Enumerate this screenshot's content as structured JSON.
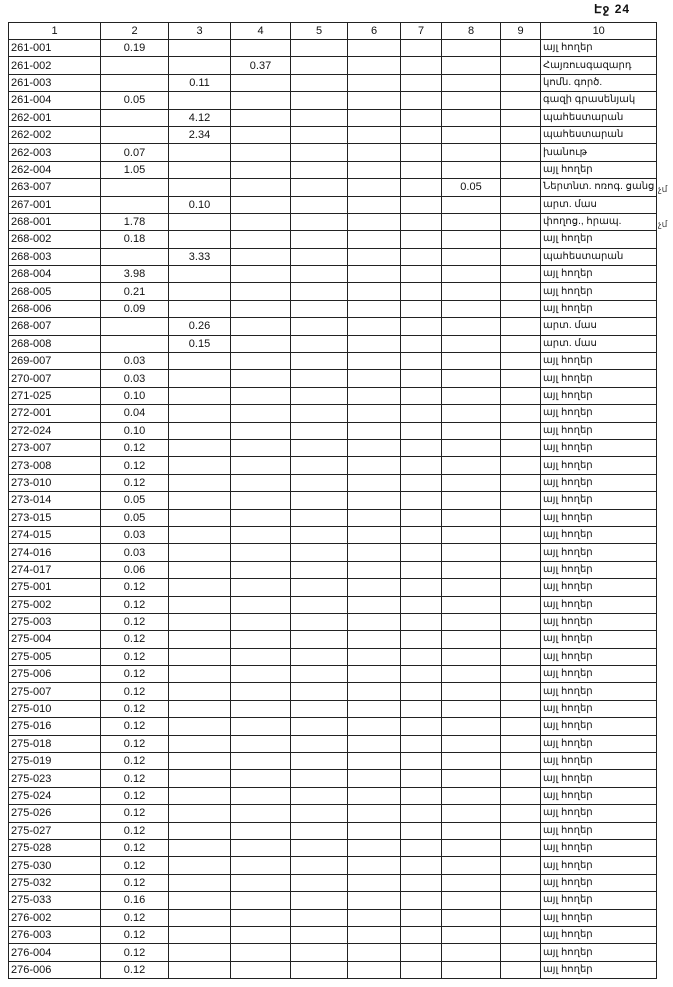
{
  "page_label": "Էջ 24",
  "headers": [
    "1",
    "2",
    "3",
    "4",
    "5",
    "6",
    "7",
    "8",
    "9",
    "10"
  ],
  "rows": [
    [
      "261-001",
      "0.19",
      "",
      "",
      "",
      "",
      "",
      "",
      "",
      "այլ հողեր"
    ],
    [
      "261-002",
      "",
      "",
      "0.37",
      "",
      "",
      "",
      "",
      "",
      "Հայռուսգազարդ"
    ],
    [
      "261-003",
      "",
      "0.11",
      "",
      "",
      "",
      "",
      "",
      "",
      "կոմն. գործ."
    ],
    [
      "261-004",
      "0.05",
      "",
      "",
      "",
      "",
      "",
      "",
      "",
      "գազի գրասենյակ"
    ],
    [
      "262-001",
      "",
      "4.12",
      "",
      "",
      "",
      "",
      "",
      "",
      "պահեստարան"
    ],
    [
      "262-002",
      "",
      "2.34",
      "",
      "",
      "",
      "",
      "",
      "",
      "պահեստարան"
    ],
    [
      "262-003",
      "0.07",
      "",
      "",
      "",
      "",
      "",
      "",
      "",
      "խանութ"
    ],
    [
      "262-004",
      "1.05",
      "",
      "",
      "",
      "",
      "",
      "",
      "",
      "այլ հողեր"
    ],
    [
      "263-007",
      "",
      "",
      "",
      "",
      "",
      "",
      "0.05",
      "",
      "Ներտնտ. ոռոգ. ցանց"
    ],
    [
      "267-001",
      "",
      "0.10",
      "",
      "",
      "",
      "",
      "",
      "",
      "արտ. մաս"
    ],
    [
      "268-001",
      "1.78",
      "",
      "",
      "",
      "",
      "",
      "",
      "",
      "փողոց., հրապ."
    ],
    [
      "268-002",
      "0.18",
      "",
      "",
      "",
      "",
      "",
      "",
      "",
      "այլ հողեր"
    ],
    [
      "268-003",
      "",
      "3.33",
      "",
      "",
      "",
      "",
      "",
      "",
      "պահեստարան"
    ],
    [
      "268-004",
      "3.98",
      "",
      "",
      "",
      "",
      "",
      "",
      "",
      "այլ հողեր"
    ],
    [
      "268-005",
      "0.21",
      "",
      "",
      "",
      "",
      "",
      "",
      "",
      "այլ հողեր"
    ],
    [
      "268-006",
      "0.09",
      "",
      "",
      "",
      "",
      "",
      "",
      "",
      "այլ հողեր"
    ],
    [
      "268-007",
      "",
      "0.26",
      "",
      "",
      "",
      "",
      "",
      "",
      "արտ. մաս"
    ],
    [
      "268-008",
      "",
      "0.15",
      "",
      "",
      "",
      "",
      "",
      "",
      "արտ. մաս"
    ],
    [
      "269-007",
      "0.03",
      "",
      "",
      "",
      "",
      "",
      "",
      "",
      "այլ հողեր"
    ],
    [
      "270-007",
      "0.03",
      "",
      "",
      "",
      "",
      "",
      "",
      "",
      "այլ հողեր"
    ],
    [
      "271-025",
      "0.10",
      "",
      "",
      "",
      "",
      "",
      "",
      "",
      "այլ հողեր"
    ],
    [
      "272-001",
      "0.04",
      "",
      "",
      "",
      "",
      "",
      "",
      "",
      "այլ հողեր"
    ],
    [
      "272-024",
      "0.10",
      "",
      "",
      "",
      "",
      "",
      "",
      "",
      "այլ հողեր"
    ],
    [
      "273-007",
      "0.12",
      "",
      "",
      "",
      "",
      "",
      "",
      "",
      "այլ հողեր"
    ],
    [
      "273-008",
      "0.12",
      "",
      "",
      "",
      "",
      "",
      "",
      "",
      "այլ հողեր"
    ],
    [
      "273-010",
      "0.12",
      "",
      "",
      "",
      "",
      "",
      "",
      "",
      "այլ հողեր"
    ],
    [
      "273-014",
      "0.05",
      "",
      "",
      "",
      "",
      "",
      "",
      "",
      "այլ հողեր"
    ],
    [
      "273-015",
      "0.05",
      "",
      "",
      "",
      "",
      "",
      "",
      "",
      "այլ հողեր"
    ],
    [
      "274-015",
      "0.03",
      "",
      "",
      "",
      "",
      "",
      "",
      "",
      "այլ հողեր"
    ],
    [
      "274-016",
      "0.03",
      "",
      "",
      "",
      "",
      "",
      "",
      "",
      "այլ հողեր"
    ],
    [
      "274-017",
      "0.06",
      "",
      "",
      "",
      "",
      "",
      "",
      "",
      "այլ հողեր"
    ],
    [
      "275-001",
      "0.12",
      "",
      "",
      "",
      "",
      "",
      "",
      "",
      "այլ հողեր"
    ],
    [
      "275-002",
      "0.12",
      "",
      "",
      "",
      "",
      "",
      "",
      "",
      "այլ հողեր"
    ],
    [
      "275-003",
      "0.12",
      "",
      "",
      "",
      "",
      "",
      "",
      "",
      "այլ հողեր"
    ],
    [
      "275-004",
      "0.12",
      "",
      "",
      "",
      "",
      "",
      "",
      "",
      "այլ հողեր"
    ],
    [
      "275-005",
      "0.12",
      "",
      "",
      "",
      "",
      "",
      "",
      "",
      "այլ հողեր"
    ],
    [
      "275-006",
      "0.12",
      "",
      "",
      "",
      "",
      "",
      "",
      "",
      "այլ հողեր"
    ],
    [
      "275-007",
      "0.12",
      "",
      "",
      "",
      "",
      "",
      "",
      "",
      "այլ հողեր"
    ],
    [
      "275-010",
      "0.12",
      "",
      "",
      "",
      "",
      "",
      "",
      "",
      "այլ հողեր"
    ],
    [
      "275-016",
      "0.12",
      "",
      "",
      "",
      "",
      "",
      "",
      "",
      "այլ հողեր"
    ],
    [
      "275-018",
      "0.12",
      "",
      "",
      "",
      "",
      "",
      "",
      "",
      "այլ հողեր"
    ],
    [
      "275-019",
      "0.12",
      "",
      "",
      "",
      "",
      "",
      "",
      "",
      "այլ հողեր"
    ],
    [
      "275-023",
      "0.12",
      "",
      "",
      "",
      "",
      "",
      "",
      "",
      "այլ հողեր"
    ],
    [
      "275-024",
      "0.12",
      "",
      "",
      "",
      "",
      "",
      "",
      "",
      "այլ հողեր"
    ],
    [
      "275-026",
      "0.12",
      "",
      "",
      "",
      "",
      "",
      "",
      "",
      "այլ հողեր"
    ],
    [
      "275-027",
      "0.12",
      "",
      "",
      "",
      "",
      "",
      "",
      "",
      "այլ հողեր"
    ],
    [
      "275-028",
      "0.12",
      "",
      "",
      "",
      "",
      "",
      "",
      "",
      "այլ հողեր"
    ],
    [
      "275-030",
      "0.12",
      "",
      "",
      "",
      "",
      "",
      "",
      "",
      "այլ հողեր"
    ],
    [
      "275-032",
      "0.12",
      "",
      "",
      "",
      "",
      "",
      "",
      "",
      "այլ հողեր"
    ],
    [
      "275-033",
      "0.16",
      "",
      "",
      "",
      "",
      "",
      "",
      "",
      "այլ հողեր"
    ],
    [
      "276-002",
      "0.12",
      "",
      "",
      "",
      "",
      "",
      "",
      "",
      "այլ հողեր"
    ],
    [
      "276-003",
      "0.12",
      "",
      "",
      "",
      "",
      "",
      "",
      "",
      "այլ հողեր"
    ],
    [
      "276-004",
      "0.12",
      "",
      "",
      "",
      "",
      "",
      "",
      "",
      "այլ հողեր"
    ],
    [
      "276-006",
      "0.12",
      "",
      "",
      "",
      "",
      "",
      "",
      "",
      "այլ հողեր"
    ]
  ],
  "margin_marks": [
    "չմ",
    "չմ"
  ]
}
